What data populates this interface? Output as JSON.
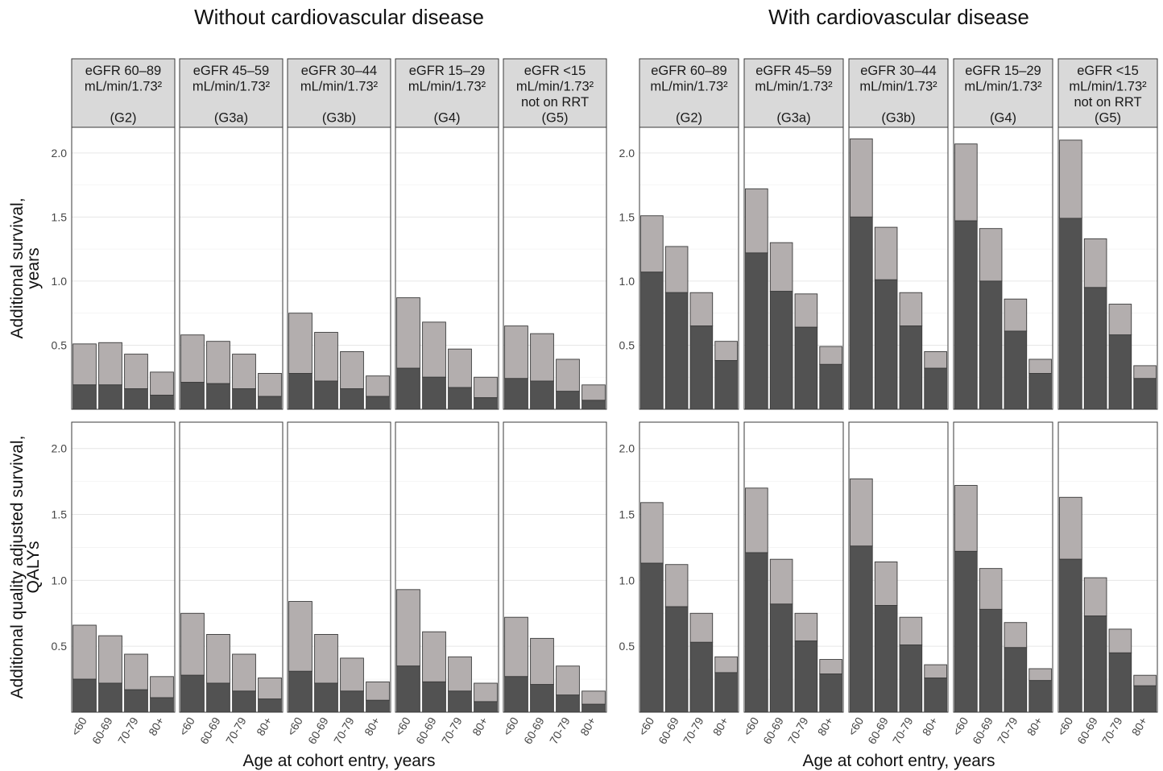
{
  "chart_data": {
    "type": "bar",
    "stacked": true,
    "group_titles": [
      "Without cardiovascular disease",
      "With cardiovascular disease"
    ],
    "strip_labels": [
      [
        "eGFR 60–89",
        "mL/min/1.73²",
        "",
        "(G2)"
      ],
      [
        "eGFR 45–59",
        "mL/min/1.73²",
        "",
        "(G3a)"
      ],
      [
        "eGFR 30–44",
        "mL/min/1.73²",
        "",
        "(G3b)"
      ],
      [
        "eGFR 15–29",
        "mL/min/1.73²",
        "",
        "(G4)"
      ],
      [
        "eGFR <15",
        "mL/min/1.73²",
        "not on RRT",
        "(G5)"
      ]
    ],
    "categories": [
      "<60",
      "60-69",
      "70-79",
      "80+"
    ],
    "row_labels": [
      [
        "Additional survival,",
        "years"
      ],
      [
        "Additional quality adjusted survival,",
        "QALYs"
      ]
    ],
    "xlabel": "Age at cohort entry, years",
    "ylim": [
      0,
      2.2
    ],
    "yticks": [
      0.5,
      1.0,
      1.5,
      2.0
    ],
    "ytick_labels": [
      "0.5",
      "1.0",
      "1.5",
      "2.0"
    ],
    "colors": {
      "dark": "#525252",
      "light": "#b3aeae",
      "border": "#3a3a3a",
      "strip": "#d9d9d9",
      "grid": "#ebebeb"
    },
    "panels": {
      "survival": {
        "without_cvd": {
          "G2": {
            "dark": [
              0.19,
              0.19,
              0.16,
              0.11
            ],
            "total": [
              0.51,
              0.52,
              0.43,
              0.29
            ]
          },
          "G3a": {
            "dark": [
              0.21,
              0.2,
              0.16,
              0.1
            ],
            "total": [
              0.58,
              0.53,
              0.43,
              0.28
            ]
          },
          "G3b": {
            "dark": [
              0.28,
              0.22,
              0.16,
              0.1
            ],
            "total": [
              0.75,
              0.6,
              0.45,
              0.26
            ]
          },
          "G4": {
            "dark": [
              0.32,
              0.25,
              0.17,
              0.09
            ],
            "total": [
              0.87,
              0.68,
              0.47,
              0.25
            ]
          },
          "G5": {
            "dark": [
              0.24,
              0.22,
              0.14,
              0.07
            ],
            "total": [
              0.65,
              0.59,
              0.39,
              0.19
            ]
          }
        },
        "with_cvd": {
          "G2": {
            "dark": [
              1.07,
              0.91,
              0.65,
              0.38
            ],
            "total": [
              1.51,
              1.27,
              0.91,
              0.53
            ]
          },
          "G3a": {
            "dark": [
              1.22,
              0.92,
              0.64,
              0.35
            ],
            "total": [
              1.72,
              1.3,
              0.9,
              0.49
            ]
          },
          "G3b": {
            "dark": [
              1.5,
              1.01,
              0.65,
              0.32
            ],
            "total": [
              2.11,
              1.42,
              0.91,
              0.45
            ]
          },
          "G4": {
            "dark": [
              1.47,
              1.0,
              0.61,
              0.28
            ],
            "total": [
              2.07,
              1.41,
              0.86,
              0.39
            ]
          },
          "G5": {
            "dark": [
              1.49,
              0.95,
              0.58,
              0.24
            ],
            "total": [
              2.1,
              1.33,
              0.82,
              0.34
            ]
          }
        }
      },
      "qalys": {
        "without_cvd": {
          "G2": {
            "dark": [
              0.25,
              0.22,
              0.17,
              0.11
            ],
            "total": [
              0.66,
              0.58,
              0.44,
              0.27
            ]
          },
          "G3a": {
            "dark": [
              0.28,
              0.22,
              0.16,
              0.1
            ],
            "total": [
              0.75,
              0.59,
              0.44,
              0.26
            ]
          },
          "G3b": {
            "dark": [
              0.31,
              0.22,
              0.16,
              0.09
            ],
            "total": [
              0.84,
              0.59,
              0.41,
              0.23
            ]
          },
          "G4": {
            "dark": [
              0.35,
              0.23,
              0.16,
              0.08
            ],
            "total": [
              0.93,
              0.61,
              0.42,
              0.22
            ]
          },
          "G5": {
            "dark": [
              0.27,
              0.21,
              0.13,
              0.06
            ],
            "total": [
              0.72,
              0.56,
              0.35,
              0.16
            ]
          }
        },
        "with_cvd": {
          "G2": {
            "dark": [
              1.13,
              0.8,
              0.53,
              0.3
            ],
            "total": [
              1.59,
              1.12,
              0.75,
              0.42
            ]
          },
          "G3a": {
            "dark": [
              1.21,
              0.82,
              0.54,
              0.29
            ],
            "total": [
              1.7,
              1.16,
              0.75,
              0.4
            ]
          },
          "G3b": {
            "dark": [
              1.26,
              0.81,
              0.51,
              0.26
            ],
            "total": [
              1.77,
              1.14,
              0.72,
              0.36
            ]
          },
          "G4": {
            "dark": [
              1.22,
              0.78,
              0.49,
              0.24
            ],
            "total": [
              1.72,
              1.09,
              0.68,
              0.33
            ]
          },
          "G5": {
            "dark": [
              1.16,
              0.73,
              0.45,
              0.2
            ],
            "total": [
              1.63,
              1.02,
              0.63,
              0.28
            ]
          }
        }
      }
    }
  }
}
